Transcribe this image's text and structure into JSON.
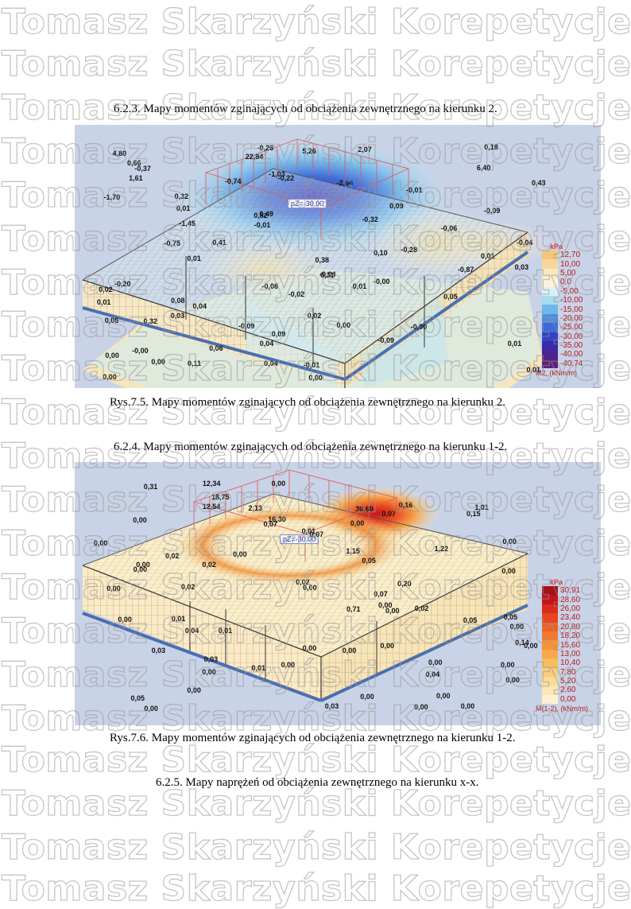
{
  "sections": [
    {
      "heading": "6.2.3.   Mapy  momentów zginających od obciążenia zewnętrznego na kierunku  2.",
      "caption": "Rys.7.5. Mapy  momentów zginających od obciążenia zewnętrznego na kierunku  2.",
      "figure": {
        "load_label": "pZ=-30.00",
        "legend_unit_top": "kPa",
        "legend_unit_bottom": "M2, (kNm/m)",
        "legend": [
          {
            "value": "12,70",
            "color": "#f3c67a"
          },
          {
            "value": "10,00",
            "color": "#f6d79b"
          },
          {
            "value": "5,00",
            "color": "#f9e8bf"
          },
          {
            "value": "0,0",
            "color": "#fbf2d8"
          },
          {
            "value": "-5,00",
            "color": "#d8f0f6"
          },
          {
            "value": "-10,00",
            "color": "#a6dcef"
          },
          {
            "value": "-15,00",
            "color": "#6fb8ea"
          },
          {
            "value": "-20,00",
            "color": "#4b8fe0"
          },
          {
            "value": "-25,00",
            "color": "#3d6ad6"
          },
          {
            "value": "-30,00",
            "color": "#3442c4"
          },
          {
            "value": "-35,00",
            "color": "#3a2aa8"
          },
          {
            "value": "-40,00",
            "color": "#4b2590"
          },
          {
            "value": "-40,74",
            "color": "#5b1f7a"
          }
        ],
        "labels": [
          "6,40",
          "4,80",
          "0,18",
          "22,84",
          "2,07",
          "-0,37",
          "-0,26",
          "5,26",
          "0,66",
          "-0,74",
          "-1,70",
          "0,32",
          "-0,22",
          "-2,64",
          "-0,01",
          "1,61",
          "-1,03",
          "0,43",
          "-0,32",
          "-0,09",
          "0,82",
          "-0,01",
          "0,49",
          "0,01",
          "0,09",
          "-1,45",
          "-0,06",
          "0,01",
          "-0,28",
          "0,38",
          "0,41",
          "-0,75",
          "0,10",
          "0,01",
          "-0,04",
          "-0,04",
          "0,02",
          "-0,08",
          "0,31",
          "-0,20",
          "-0,87",
          "0,03",
          "-0,00",
          "0,01",
          "0,03",
          "0,32",
          "0,05",
          "0,02",
          "0,05",
          "-0,02",
          "0,04",
          "0,01",
          "0,08",
          "-0,00",
          "-0,00",
          "0,00",
          "-0,09",
          "0,09",
          "0,01",
          "0,04",
          "0,06",
          "-0,09",
          "0,11",
          "0,00",
          "0,00",
          "0,00",
          "0,01",
          "0,04",
          "0,00",
          "-0,01"
        ]
      }
    },
    {
      "heading": "6.2.4.   Mapy  momentów zginających od obciążenia zewnętrznego na kierunku  1-2.",
      "caption": "Rys.7.6. Mapy  momentów zginających od obciążenia zewnętrznego na kierunku  1-2.",
      "figure": {
        "load_label": "pZ=-30.00",
        "legend_unit_top": "kPa",
        "legend_unit_bottom": "M(1-2), (kNm/m)",
        "legend": [
          {
            "value": "30,91",
            "color": "#a3121a"
          },
          {
            "value": "28,60",
            "color": "#c2141c"
          },
          {
            "value": "26,00",
            "color": "#d92a1c"
          },
          {
            "value": "23,40",
            "color": "#e6451f"
          },
          {
            "value": "20,80",
            "color": "#ef6024"
          },
          {
            "value": "18,20",
            "color": "#f37a2c"
          },
          {
            "value": "15,60",
            "color": "#f5933a"
          },
          {
            "value": "13,00",
            "color": "#f7a94c"
          },
          {
            "value": "10,40",
            "color": "#f8bd62"
          },
          {
            "value": "7,80",
            "color": "#f9cd7c"
          },
          {
            "value": "5,20",
            "color": "#fadb98"
          },
          {
            "value": "2,60",
            "color": "#fbe6b4"
          },
          {
            "value": "0,00",
            "color": "#fdf1d2"
          }
        ],
        "labels": [
          "2,13",
          "30,60",
          "12,54",
          "0,16",
          "12,34",
          "0,31",
          "18,75",
          "1,01",
          "0,00",
          "16,30",
          "0,15",
          "0,07",
          "0,07",
          "0,01",
          "0,07",
          "0,00",
          "0,00",
          "0,02",
          "0,00",
          "0,00",
          "0,05",
          "0,00",
          "1,15",
          "0,00",
          "1,22",
          "0,02",
          "0,00",
          "0,02",
          "0,00",
          "0,20",
          "0,02",
          "0,07",
          "0,00",
          "0,00",
          "0,01",
          "0,00",
          "0,05",
          "0,00",
          "0,00",
          "0,05",
          "0,71",
          "0,02",
          "0,00",
          "0,03",
          "0,01",
          "0,00",
          "0,14",
          "0,00",
          "0,04",
          "0,00",
          "0,00",
          "0,00",
          "0,00",
          "0,04",
          "0,00",
          "0,00",
          "0,01",
          "0,00",
          "0,03",
          "0,05",
          "0,00",
          "0,00",
          "0,00",
          "0,00",
          "0,03",
          "0,00",
          "0,00"
        ]
      }
    },
    {
      "heading": "6.2.5.   Mapy  naprężeń od obciążenia zewnętrznego na kierunku  x-x."
    }
  ],
  "watermark": "Tomasz Skarzyński Korepetycje©To"
}
